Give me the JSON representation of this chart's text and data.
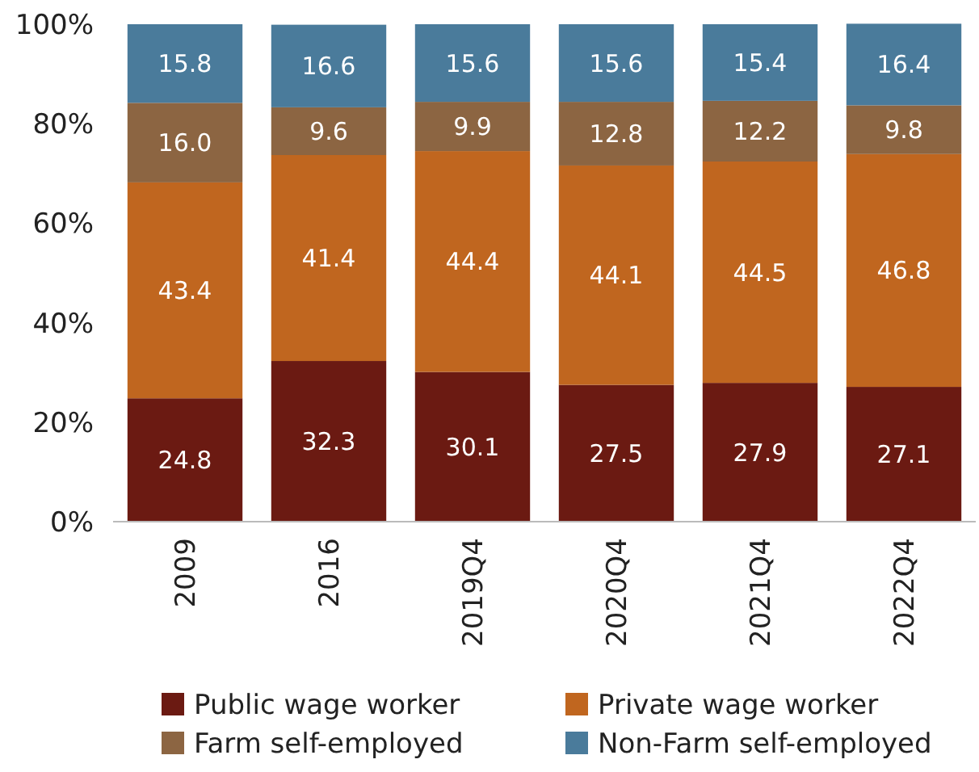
{
  "chart_data": {
    "type": "bar",
    "stacked": true,
    "categories": [
      "2009",
      "2016",
      "2019Q4",
      "2020Q4",
      "2021Q4",
      "2022Q4"
    ],
    "series": [
      {
        "name": "Public wage worker",
        "color": "#6b1a12",
        "values": [
          24.8,
          32.3,
          30.1,
          27.5,
          27.9,
          27.1
        ],
        "value_labels": [
          "24.8",
          "32.3",
          "30.1",
          "27.5",
          "27.9",
          "27.1"
        ]
      },
      {
        "name": "Private wage worker",
        "color": "#c0661f",
        "values": [
          43.4,
          41.4,
          44.4,
          44.1,
          44.5,
          46.8
        ],
        "value_labels": [
          "43.4",
          "41.4",
          "44.4",
          "44.1",
          "44.5",
          "46.8"
        ]
      },
      {
        "name": "Farm self-employed",
        "color": "#8c6542",
        "values": [
          16.0,
          9.6,
          9.9,
          12.8,
          12.2,
          9.8
        ],
        "value_labels": [
          "16.0",
          "9.6",
          "9.9",
          "12.8",
          "12.2",
          "9.8"
        ]
      },
      {
        "name": "Non-Farm self-employed",
        "color": "#4a7b9b",
        "values": [
          15.8,
          16.6,
          15.6,
          15.6,
          15.4,
          16.4
        ],
        "value_labels": [
          "15.8",
          "16.6",
          "15.6",
          "15.6",
          "15.4",
          "16.4"
        ]
      }
    ],
    "ylim": [
      0,
      100
    ],
    "yticks": [
      {
        "value": 0,
        "label": "0%"
      },
      {
        "value": 20,
        "label": "20%"
      },
      {
        "value": 40,
        "label": "40%"
      },
      {
        "value": 60,
        "label": "60%"
      },
      {
        "value": 80,
        "label": "80%"
      },
      {
        "value": 100,
        "label": "100%"
      }
    ],
    "grid": false,
    "legend": "bottom"
  }
}
